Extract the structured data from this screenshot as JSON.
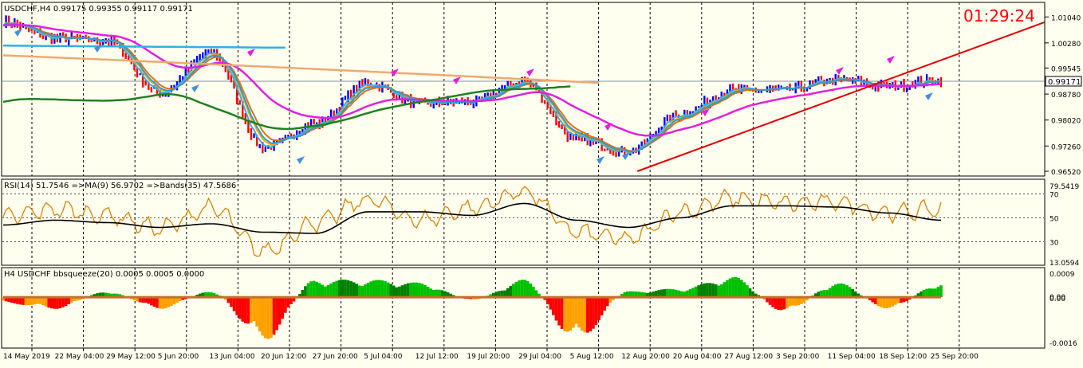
{
  "clock": "01:29:24",
  "colors": {
    "background": "#FFFFF0",
    "grid": "#000000",
    "bull_bar": "#0000FF",
    "bear_bar": "#FF0000",
    "ma_fast": "#FFA500",
    "ma_mid": "#E07010",
    "ma_cyan": "#20A0E0",
    "ma_magenta": "#E020E0",
    "ma_green": "#208020",
    "ma_tan": "#F0A870",
    "ma_sky": "#30B0E8",
    "trendline": "#E00000",
    "rsi": "#E08000",
    "rsi_ma": "#000000",
    "hist_green": "#00C000",
    "hist_red": "#FF0000",
    "hist_orange": "#FFA000",
    "zero_line": "#C07030",
    "clock": "#FF0000"
  },
  "price_panel": {
    "title": "USDCHF,H4  0.99175 0.99355 0.99117 0.99171",
    "current_price": "0.99171",
    "y_labels": [
      "1.01040",
      "1.00280",
      "0.99545",
      "0.98780",
      "0.98020",
      "0.97260",
      "0.96520"
    ]
  },
  "rsi_panel": {
    "title": "RSI(14) 51.7546  =>MA(9) 56.9702  =>Bands(35) 47.5686",
    "y_labels": [
      "79.5419",
      "70",
      "50",
      "30",
      "13.0594"
    ]
  },
  "squeeze_panel": {
    "title": "H4 USDCHF bbsqueeze(20) 0.0005 0.0005 0.0000",
    "y_labels": [
      "0.0009",
      "0.00",
      "0.00",
      "-0.0016"
    ]
  },
  "x_labels": [
    "14 May 2019",
    "22 May 04:00",
    "29 May 12:00",
    "5 Jun 20:00",
    "13 Jun 04:00",
    "20 Jun 12:00",
    "27 Jun 20:00",
    "5 Jul 04:00",
    "12 Jul 12:00",
    "19 Jul 20:00",
    "29 Jul 04:00",
    "5 Aug 12:00",
    "12 Aug 20:00",
    "20 Aug 04:00",
    "27 Aug 12:00",
    "3 Sep 20:00",
    "11 Sep 04:00",
    "18 Sep 12:00",
    "25 Sep 20:00"
  ],
  "chart_data": {
    "type": "line",
    "symbol": "USDCHF",
    "timeframe": "H4",
    "ohlc_last": {
      "open": 0.99175,
      "high": 0.99355,
      "low": 0.99117,
      "close": 0.99171
    },
    "categories": [
      "14 May 2019",
      "22 May 04:00",
      "29 May 12:00",
      "5 Jun 20:00",
      "13 Jun 04:00",
      "20 Jun 12:00",
      "27 Jun 20:00",
      "5 Jul 04:00",
      "12 Jul 12:00",
      "19 Jul 20:00",
      "29 Jul 04:00",
      "5 Aug 12:00",
      "12 Aug 20:00",
      "20 Aug 04:00",
      "27 Aug 12:00",
      "3 Sep 20:00",
      "11 Sep 04:00",
      "18 Sep 12:00",
      "25 Sep 20:00"
    ],
    "price_ylim": [
      0.9645,
      1.0135
    ],
    "price_close": [
      1.009,
      1.004,
      1.0035,
      0.988,
      1.0,
      0.972,
      0.979,
      0.991,
      0.985,
      0.9855,
      0.9915,
      0.9745,
      0.971,
      0.982,
      0.989,
      0.989,
      0.992,
      0.99,
      0.992
    ],
    "rsi_ylim": [
      13.0594,
      79.5419
    ],
    "rsi": [
      50,
      57,
      52,
      41,
      58,
      22,
      46,
      65,
      48,
      58,
      72,
      38,
      32,
      55,
      66,
      62,
      63,
      54,
      57
    ],
    "rsi_ma": [
      44,
      48,
      46,
      42,
      45,
      38,
      37,
      55,
      55,
      52,
      62,
      48,
      42,
      50,
      60,
      60,
      59,
      54,
      48
    ],
    "squeeze_ylim": [
      -0.0016,
      0.0009
    ],
    "squeeze": [
      -0.0002,
      -0.0004,
      0.0002,
      -0.0004,
      0.0002,
      -0.0015,
      0.0006,
      0.0006,
      0.0005,
      -0.0001,
      0.0006,
      -0.0015,
      0.0002,
      0.0003,
      0.0007,
      -0.0005,
      0.0005,
      -0.0004,
      0.0005
    ],
    "trendline": {
      "from": {
        "x": "12 Aug 20:00",
        "y": 0.9652
      },
      "to": {
        "x": "25 Sep 20:00",
        "y": 0.9972
      }
    }
  }
}
